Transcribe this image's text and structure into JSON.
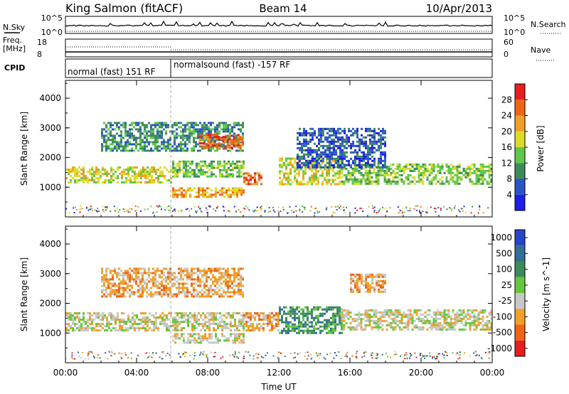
{
  "header": {
    "station": "King Salmon (fitACF)",
    "beam": "Beam 14",
    "date": "10/Apr/2013"
  },
  "strip": {
    "nsky_label": "N.Sky",
    "nsearch_label": "N.Search",
    "nsky_tick_top": "10^5",
    "nsky_tick_bot": "10^0",
    "freq_label_1": "Freq.",
    "freq_label_2": "[MHz]",
    "freq_tick_top": "18",
    "freq_tick_bot": "8",
    "nave_label": "Nave",
    "nave_tick_top": "60",
    "nave_tick_bot": "0",
    "cpid_label": "CPID",
    "cpid_1": "normal (fast) 151 RF",
    "cpid_2": "normalsound (fast) -157 RF"
  },
  "chart_data": [
    {
      "type": "heatmap",
      "panel": "power",
      "ylabel": "Slant Range [km]",
      "ylim": [
        0,
        4600
      ],
      "yticks": [
        "1000",
        "2000",
        "3000",
        "4000"
      ],
      "colorbar_label": "Power [dB]",
      "colorbar_ticks": [
        "4",
        "8",
        "12",
        "16",
        "20",
        "24",
        "28"
      ],
      "colors": [
        "#1e1ee6",
        "#2a55c8",
        "#3c8c5a",
        "#5fc84b",
        "#dcdc28",
        "#f0a028",
        "#f06414",
        "#e61e1e"
      ],
      "echo_regions": [
        {
          "t_start": 0,
          "t_end": 6,
          "r_low": 1150,
          "r_high": 1700,
          "level": 4
        },
        {
          "t_start": 6,
          "t_end": 10,
          "r_low": 1350,
          "r_high": 1900,
          "level": 3
        },
        {
          "t_start": 10,
          "t_end": 11,
          "r_low": 1100,
          "r_high": 1500,
          "level": 6
        },
        {
          "t_start": 12,
          "t_end": 15.5,
          "r_low": 1100,
          "r_high": 2000,
          "level": 4
        },
        {
          "t_start": 15.5,
          "t_end": 24,
          "r_low": 1100,
          "r_high": 1800,
          "level": 3
        },
        {
          "t_start": 6,
          "t_end": 10,
          "r_low": 700,
          "r_high": 1000,
          "level": 5
        },
        {
          "t_start": 2,
          "t_end": 10,
          "r_low": 2200,
          "r_high": 3200,
          "level": 2
        },
        {
          "t_start": 7.5,
          "t_end": 10,
          "r_low": 2300,
          "r_high": 2800,
          "level": 6
        },
        {
          "t_start": 13,
          "t_end": 18,
          "r_low": 1700,
          "r_high": 3000,
          "level": 1
        }
      ]
    },
    {
      "type": "heatmap",
      "panel": "velocity",
      "xlabel": "Time UT",
      "ylabel": "Slant Range [km]",
      "ylim": [
        0,
        4600
      ],
      "yticks": [
        "1000",
        "2000",
        "3000",
        "4000"
      ],
      "xticks": [
        "00:00",
        "04:00",
        "08:00",
        "12:00",
        "16:00",
        "20:00",
        "00:00"
      ],
      "xlim": [
        0,
        24
      ],
      "colorbar_label": "Velocity [m s^-1]",
      "colorbar_ticks": [
        "1000",
        "500",
        "100",
        "25",
        "-25",
        "-100",
        "-500",
        "-1000"
      ],
      "colors": [
        "#2846c8",
        "#326e96",
        "#3c8c5a",
        "#64c83c",
        "#c8c8c8",
        "#f0a028",
        "#f06414",
        "#e61e1e"
      ],
      "echo_regions": [
        {
          "t_start": 0,
          "t_end": 10,
          "r_low": 1100,
          "r_high": 1700,
          "level": 4
        },
        {
          "t_start": 10,
          "t_end": 12,
          "r_low": 1100,
          "r_high": 1700,
          "level": 5
        },
        {
          "t_start": 12,
          "t_end": 15.5,
          "r_low": 1000,
          "r_high": 1900,
          "level": 2
        },
        {
          "t_start": 15.5,
          "t_end": 24,
          "r_low": 1100,
          "r_high": 1800,
          "level": 4
        },
        {
          "t_start": 6,
          "t_end": 10,
          "r_low": 700,
          "r_high": 1000,
          "level": 4
        },
        {
          "t_start": 2,
          "t_end": 10,
          "r_low": 2200,
          "r_high": 3200,
          "level": 5
        },
        {
          "t_start": 16,
          "t_end": 18,
          "r_low": 2400,
          "r_high": 3000,
          "level": 5
        }
      ]
    }
  ]
}
